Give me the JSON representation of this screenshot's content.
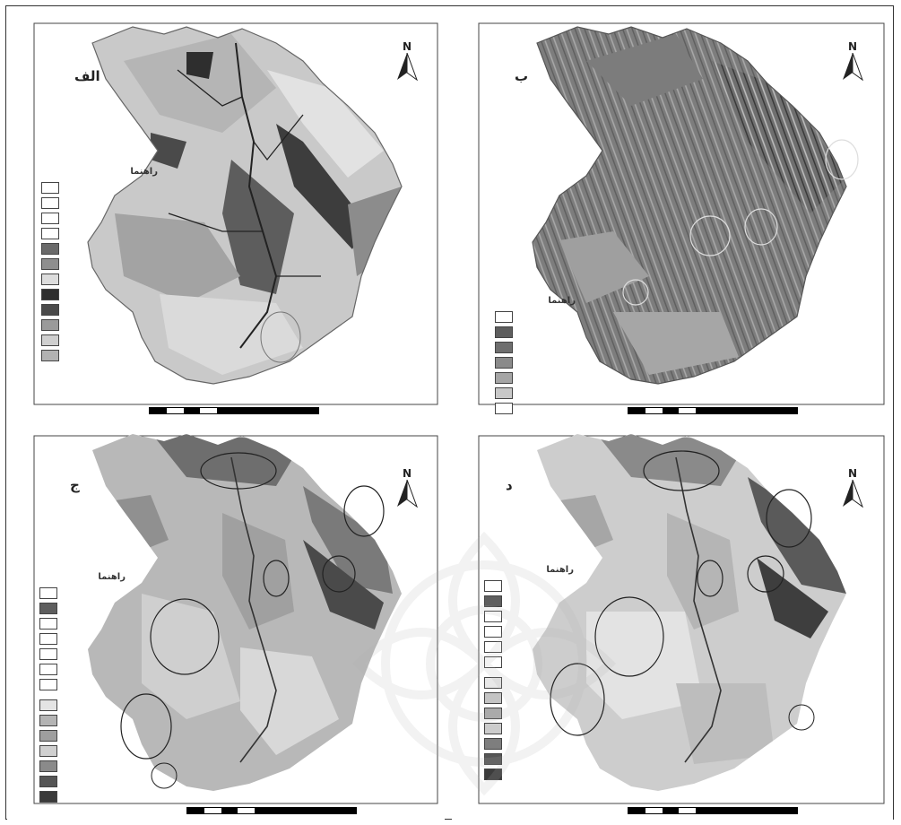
{
  "panels": [
    {
      "letter": "الف",
      "legend": {
        "title": "راهنما",
        "items": [
          {
            "label": "",
            "color": "#ffffff"
          },
          {
            "label": "",
            "color": "#ffffff"
          },
          {
            "label": "",
            "color": "#ffffff"
          },
          {
            "label": "",
            "color": "#ffffff"
          },
          {
            "label": "",
            "color": "#6a6a6a"
          },
          {
            "label": "",
            "color": "#8e8e8e"
          },
          {
            "label": "",
            "color": "#dcdcdc"
          },
          {
            "label": "",
            "color": "#2e2e2e"
          },
          {
            "label": "",
            "color": "#4a4a4a"
          },
          {
            "label": "",
            "color": "#9a9a9a"
          },
          {
            "label": "",
            "color": "#cfcfcf"
          },
          {
            "label": "",
            "color": "#b2b2b2"
          }
        ]
      }
    },
    {
      "letter": "ب",
      "legend": {
        "title": "راهنما",
        "items": [
          {
            "label": "",
            "color": "#ffffff"
          },
          {
            "label": "",
            "color": "#5e5e5e"
          },
          {
            "label": "",
            "color": "#6e6e6e"
          },
          {
            "label": "",
            "color": "#8a8a8a"
          },
          {
            "label": "",
            "color": "#a5a5a5"
          },
          {
            "label": "",
            "color": "#c8c8c8"
          },
          {
            "label": "",
            "color": "#ffffff"
          }
        ]
      }
    },
    {
      "letter": "ج",
      "legend": {
        "title": "راهنما",
        "items": [
          {
            "label": "",
            "color": "#ffffff"
          },
          {
            "label": "",
            "color": "#5e5e5e"
          },
          {
            "label": "",
            "color": "#ffffff"
          },
          {
            "label": "",
            "color": "#ffffff"
          },
          {
            "label": "",
            "color": "#ffffff"
          },
          {
            "label": "",
            "color": "#ffffff"
          },
          {
            "label": "",
            "color": "#ffffff"
          }
        ],
        "ramp": [
          {
            "label": "",
            "color": "#e4e4e4"
          },
          {
            "label": "",
            "color": "#b4b4b4"
          },
          {
            "label": "",
            "color": "#9e9e9e"
          },
          {
            "label": "",
            "color": "#d0d0d0"
          },
          {
            "label": "",
            "color": "#8a8a8a"
          },
          {
            "label": "",
            "color": "#555555"
          },
          {
            "label": "",
            "color": "#3a3a3a"
          }
        ]
      }
    },
    {
      "letter": "د",
      "legend": {
        "title": "راهنما",
        "items": [
          {
            "label": "",
            "color": "#ffffff"
          },
          {
            "label": "",
            "color": "#5e5e5e"
          },
          {
            "label": "",
            "color": "#ffffff"
          },
          {
            "label": "",
            "color": "#ffffff"
          },
          {
            "label": "",
            "color": "#ffffff"
          },
          {
            "label": "",
            "color": "#ffffff"
          }
        ],
        "ramp": [
          {
            "label": "",
            "color": "#e8e8e8"
          },
          {
            "label": "",
            "color": "#c4c4c4"
          },
          {
            "label": "",
            "color": "#aaaaaa"
          },
          {
            "label": "",
            "color": "#cccccc"
          },
          {
            "label": "",
            "color": "#7e7e7e"
          },
          {
            "label": "",
            "color": "#565656"
          },
          {
            "label": "",
            "color": "#3c3c3c"
          }
        ]
      }
    }
  ],
  "north_label": "N",
  "colors": {
    "paper": "#ffffff",
    "terrain_light": "#c8c8c8",
    "terrain_mid": "#9c9c9c",
    "terrain_dark": "#4a4a4a",
    "river": "#2a2a2a",
    "frame": "#333333"
  }
}
